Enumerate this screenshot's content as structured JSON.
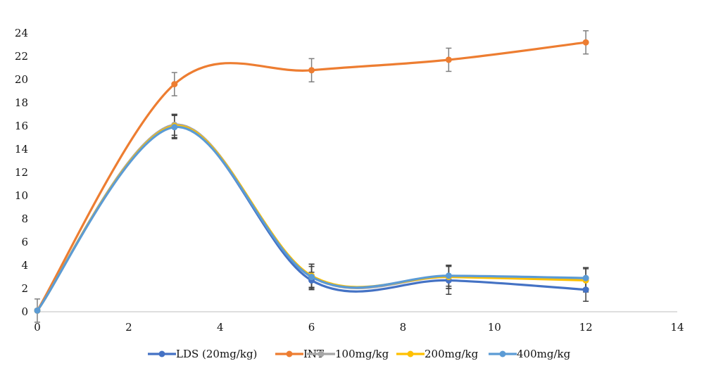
{
  "chart_data": {
    "type": "line",
    "title": "",
    "xlabel": "",
    "ylabel": "",
    "xlim": [
      0,
      14
    ],
    "ylim": [
      0,
      24
    ],
    "x_ticks": [
      0,
      2,
      4,
      6,
      8,
      10,
      12,
      14
    ],
    "y_ticks": [
      0,
      2,
      4,
      6,
      8,
      10,
      12,
      14,
      16,
      18,
      20,
      22,
      24
    ],
    "grid": false,
    "legend_position": "bottom",
    "x": [
      0,
      3,
      6,
      9,
      12
    ],
    "series": [
      {
        "name": "LDS (20mg/kg)",
        "color": "#4472C4",
        "values": [
          0.1,
          16.0,
          2.7,
          2.7,
          1.9
        ],
        "error": [
          0.0,
          1.0,
          0.7,
          1.2,
          1.0
        ]
      },
      {
        "name": "INT",
        "color": "#ED7D31",
        "values": [
          0.1,
          19.6,
          20.8,
          21.7,
          23.2
        ],
        "error": [
          1.0,
          1.0,
          1.0,
          1.0,
          1.0
        ]
      },
      {
        "name": "100mg/kg",
        "color": "#A5A5A5",
        "values": [
          0.1,
          16.1,
          3.0,
          3.0,
          2.9
        ],
        "error": [
          0.0,
          0.9,
          1.1,
          1.0,
          0.9
        ]
      },
      {
        "name": "200mg/kg",
        "color": "#FFC000",
        "values": [
          0.1,
          16.0,
          3.1,
          3.0,
          2.7
        ],
        "error": [
          0.0,
          1.0,
          1.0,
          1.0,
          1.0
        ]
      },
      {
        "name": "400mg/kg",
        "color": "#5B9BD5",
        "values": [
          0.1,
          15.9,
          3.0,
          3.1,
          2.9
        ],
        "error": [
          0.0,
          1.0,
          0.9,
          0.9,
          0.9
        ]
      }
    ]
  }
}
